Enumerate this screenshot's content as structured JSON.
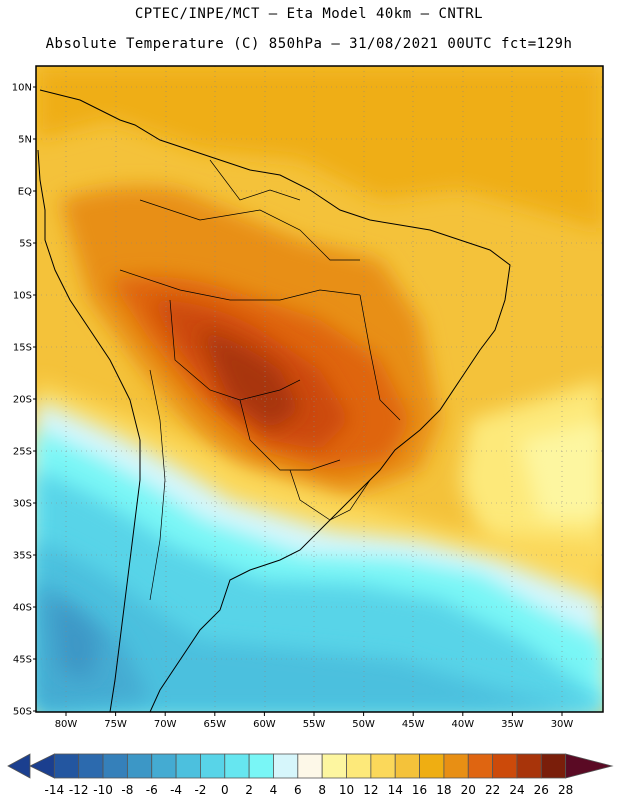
{
  "header": {
    "line1": "CPTEC/INPE/MCT –  Eta Model 40km – CNTRL",
    "line2": "Absolute Temperature (C) 850hPa – 31/08/2021 00UTC fct=129h"
  },
  "map": {
    "lat_labels": [
      "10N",
      "5N",
      "EQ",
      "5S",
      "10S",
      "15S",
      "20S",
      "25S",
      "30S",
      "35S",
      "40S",
      "45S",
      "50S"
    ],
    "lon_labels": [
      "80W",
      "75W",
      "70W",
      "65W",
      "60W",
      "55W",
      "50W",
      "45W",
      "40W",
      "35W",
      "30W"
    ],
    "lat_range": [
      -50,
      12
    ],
    "lon_range": [
      -83,
      -26
    ]
  },
  "colorbar": {
    "labels": [
      "-14",
      "-12",
      "-10",
      "-8",
      "-6",
      "-4",
      "-2",
      "0",
      "2",
      "4",
      "6",
      "8",
      "10",
      "12",
      "14",
      "16",
      "18",
      "20",
      "22",
      "24",
      "26",
      "28"
    ],
    "colors": [
      "#1b3f8f",
      "#2356a0",
      "#2c6aae",
      "#3580ba",
      "#3c97c6",
      "#44abd2",
      "#4cc0de",
      "#58d4e8",
      "#66e6f0",
      "#79f6f6",
      "#d6f6fb",
      "#fdf8e8",
      "#fdf6a0",
      "#fde97a",
      "#fbd85a",
      "#f4c23a",
      "#efae12",
      "#e88f14",
      "#df6511",
      "#cc4a0a",
      "#a8340a",
      "#7a1e0a",
      "#5a0a24"
    ]
  }
}
